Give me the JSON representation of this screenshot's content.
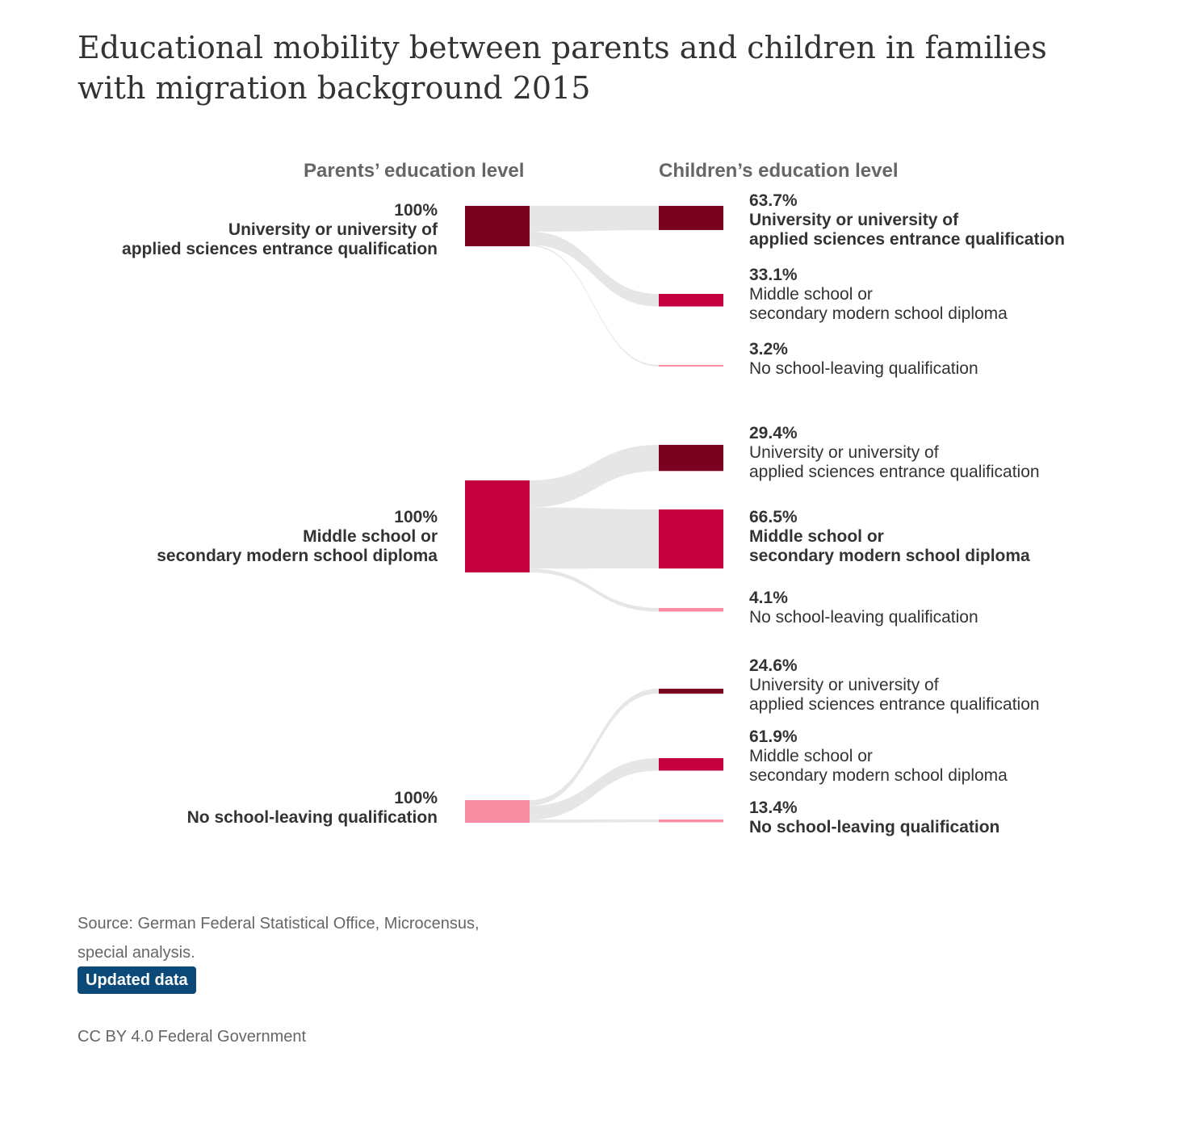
{
  "title": "Educational mobility between parents and children in families with migration background 2015",
  "headers": {
    "parents": "Parents’ education level",
    "children": "Children’s education level"
  },
  "colors": {
    "university": "#7a0020",
    "middle": "#c4003f",
    "none": "#f78ca2",
    "flow": "#e6e6e6",
    "badge": "#0b4a78"
  },
  "chart_data": {
    "type": "sankey",
    "groups": [
      {
        "parent": {
          "pct": "100%",
          "line1": "University or university of",
          "line2": "applied sciences entrance qualification",
          "level": "university"
        },
        "children": [
          {
            "pct": "63.7%",
            "line1": "University or university of",
            "line2": "applied sciences entrance qualification",
            "level": "university",
            "value": 63.7,
            "bold": true
          },
          {
            "pct": "33.1%",
            "line1": "Middle school or",
            "line2": "secondary modern school diploma",
            "level": "middle",
            "value": 33.1,
            "bold": false
          },
          {
            "pct": "3.2%",
            "line1": "No school-leaving qualification",
            "line2": "",
            "level": "none",
            "value": 3.2,
            "bold": false
          }
        ]
      },
      {
        "parent": {
          "pct": "100%",
          "line1": "Middle school or",
          "line2": "secondary modern school diploma",
          "level": "middle"
        },
        "children": [
          {
            "pct": "29.4%",
            "line1": "University or university of",
            "line2": "applied sciences entrance qualification",
            "level": "university",
            "value": 29.4,
            "bold": false
          },
          {
            "pct": "66.5%",
            "line1": "Middle school or",
            "line2": "secondary modern school diploma",
            "level": "middle",
            "value": 66.5,
            "bold": true
          },
          {
            "pct": "4.1%",
            "line1": "No school-leaving qualification",
            "line2": "",
            "level": "none",
            "value": 4.1,
            "bold": false
          }
        ]
      },
      {
        "parent": {
          "pct": "100%",
          "line1": "No school-leaving qualification",
          "line2": "",
          "level": "none"
        },
        "children": [
          {
            "pct": "24.6%",
            "line1": "University or university of",
            "line2": "applied sciences entrance qualification",
            "level": "university",
            "value": 24.6,
            "bold": false
          },
          {
            "pct": "61.9%",
            "line1": "Middle school or",
            "line2": "secondary modern school diploma",
            "level": "middle",
            "value": 61.9,
            "bold": false
          },
          {
            "pct": "13.4%",
            "line1": "No school-leaving qualification",
            "line2": "",
            "level": "none",
            "value": 13.4,
            "bold": true
          }
        ]
      }
    ]
  },
  "footer": {
    "source_line1": "Source: German Federal Statistical Office, Microcensus,",
    "source_line2": "special analysis.",
    "badge": "Updated data",
    "license": "CC BY 4.0 Federal Government"
  }
}
